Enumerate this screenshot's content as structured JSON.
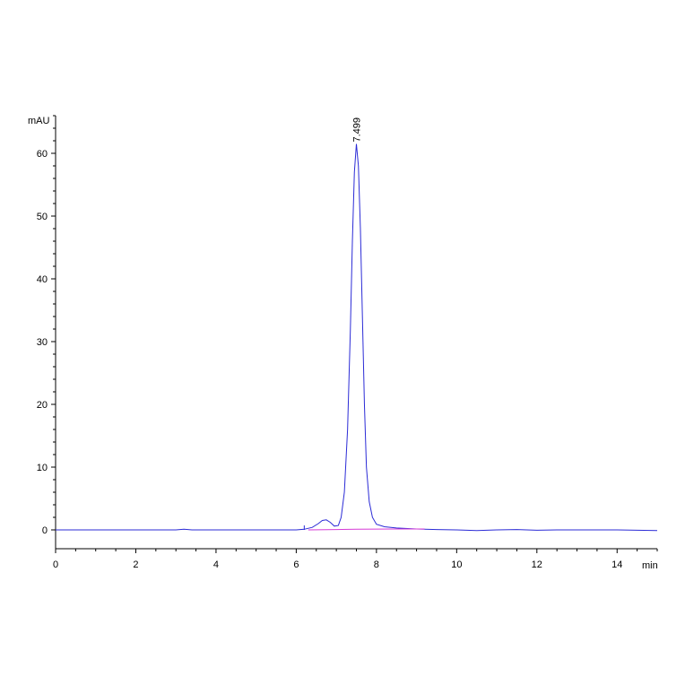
{
  "chart_data": {
    "type": "line",
    "title": "",
    "xlabel": "min",
    "ylabel": "mAU",
    "xlim": [
      0,
      15
    ],
    "ylim": [
      -3,
      66
    ],
    "x_ticks": [
      0,
      2,
      4,
      6,
      8,
      10,
      12,
      14
    ],
    "y_ticks": [
      0,
      10,
      20,
      30,
      40,
      50,
      60
    ],
    "grid": false,
    "series": [
      {
        "color": "#2b2bd6",
        "x": [
          0,
          2.0,
          3.0,
          3.2,
          3.4,
          5.0,
          6.0,
          6.2,
          6.4,
          6.55,
          6.65,
          6.75,
          6.85,
          6.95,
          7.05,
          7.12,
          7.2,
          7.28,
          7.35,
          7.4,
          7.45,
          7.5,
          7.55,
          7.6,
          7.65,
          7.7,
          7.75,
          7.82,
          7.9,
          8.0,
          8.2,
          8.5,
          9.0,
          9.5,
          10.0,
          10.5,
          11.0,
          11.5,
          12.0,
          12.5,
          13.0,
          14.0,
          15.0
        ],
        "y": [
          0,
          0,
          0,
          0.1,
          0,
          0,
          0,
          0.1,
          0.4,
          1.0,
          1.5,
          1.6,
          1.2,
          0.6,
          0.7,
          2.0,
          6.0,
          16.0,
          32.0,
          46.0,
          57.0,
          61.5,
          58.0,
          48.0,
          34.0,
          20.0,
          10.0,
          4.5,
          2.0,
          0.9,
          0.5,
          0.3,
          0.15,
          0.05,
          0,
          -0.1,
          0,
          0.05,
          -0.05,
          0,
          0,
          0,
          -0.1
        ]
      },
      {
        "color": "#d63ad6",
        "x": [
          6.3,
          7.0,
          7.5,
          8.0,
          8.5,
          9.0,
          9.2
        ],
        "y": [
          0,
          0.05,
          0.1,
          0.12,
          0.14,
          0.15,
          0.15
        ]
      }
    ],
    "annotations": [
      {
        "text": "7.499",
        "x": 7.499,
        "y": 61.5
      }
    ]
  }
}
